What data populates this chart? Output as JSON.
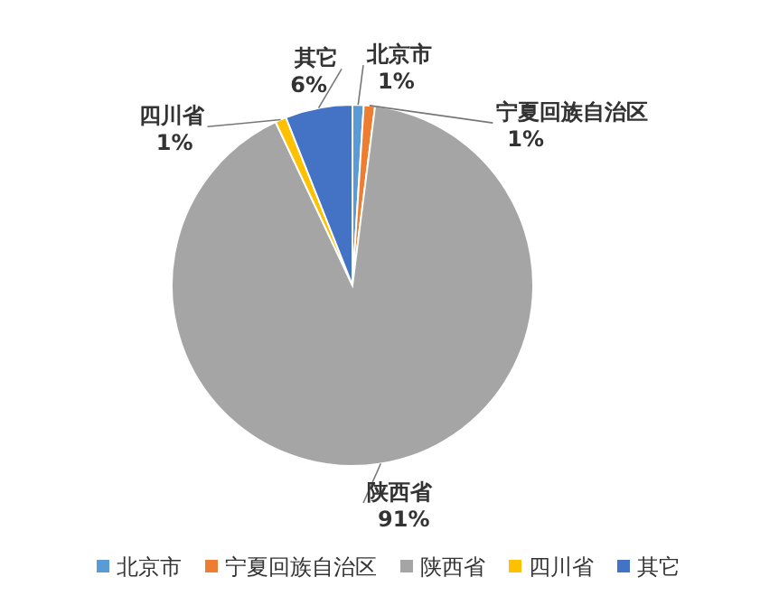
{
  "chart_data": {
    "type": "pie",
    "categories": [
      "北京市",
      "宁夏回族自治区",
      "陕西省",
      "四川省",
      "其它"
    ],
    "values": [
      1,
      1,
      91,
      1,
      6
    ],
    "value_labels": [
      "1%",
      "1%",
      "91%",
      "1%",
      "6%"
    ],
    "colors": [
      "#5b9bd5",
      "#ed7d31",
      "#a5a5a5",
      "#ffc000",
      "#4472c4"
    ],
    "legend": "bottom"
  }
}
